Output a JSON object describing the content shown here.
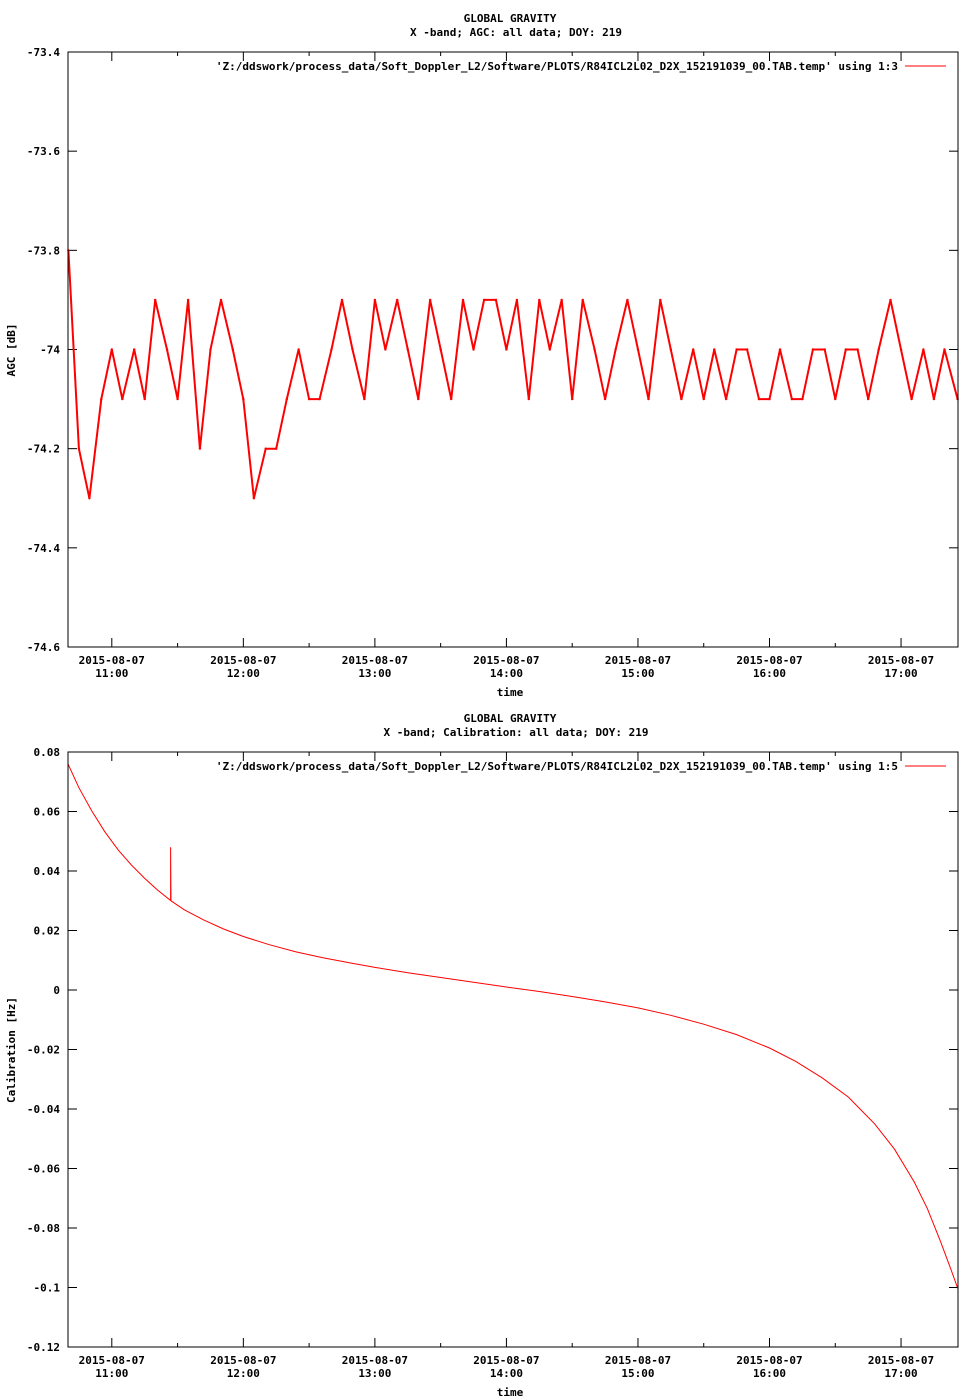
{
  "chart_data": [
    {
      "type": "line",
      "title": "GLOBAL GRAVITY",
      "subtitle": "X -band; AGC: all data; DOY: 219",
      "xlabel": "time",
      "ylabel": "AGC [dB]",
      "ylim": [
        -74.6,
        -73.4
      ],
      "yticks": [
        -73.4,
        -73.6,
        -73.8,
        -74,
        -74.2,
        -74.4,
        -74.6
      ],
      "xlim": [
        10.667,
        17.433
      ],
      "xticks": [
        {
          "x": 11,
          "date": "2015-08-07",
          "time": "11:00"
        },
        {
          "x": 12,
          "date": "2015-08-07",
          "time": "12:00"
        },
        {
          "x": 13,
          "date": "2015-08-07",
          "time": "13:00"
        },
        {
          "x": 14,
          "date": "2015-08-07",
          "time": "14:00"
        },
        {
          "x": 15,
          "date": "2015-08-07",
          "time": "15:00"
        },
        {
          "x": 16,
          "date": "2015-08-07",
          "time": "16:00"
        },
        {
          "x": 17,
          "date": "2015-08-07",
          "time": "17:00"
        }
      ],
      "legend_position": "top-right",
      "series": [
        {
          "name": "'Z:/ddswork/process_data/Soft_Doppler_L2/Software/PLOTS/R84ICL2L02_D2X_152191039_00.TAB.temp' using 1:3",
          "color": "#ff0000",
          "x": [
            10.67,
            10.75,
            10.83,
            10.92,
            11.0,
            11.08,
            11.17,
            11.25,
            11.33,
            11.42,
            11.5,
            11.58,
            11.67,
            11.75,
            11.83,
            11.92,
            12.0,
            12.08,
            12.17,
            12.25,
            12.33,
            12.42,
            12.5,
            12.58,
            12.67,
            12.75,
            12.83,
            12.92,
            13.0,
            13.08,
            13.17,
            13.25,
            13.33,
            13.42,
            13.5,
            13.58,
            13.67,
            13.75,
            13.83,
            13.92,
            14.0,
            14.08,
            14.17,
            14.25,
            14.33,
            14.42,
            14.5,
            14.58,
            14.67,
            14.75,
            14.83,
            14.92,
            15.0,
            15.08,
            15.17,
            15.25,
            15.33,
            15.42,
            15.5,
            15.58,
            15.67,
            15.75,
            15.83,
            15.92,
            16.0,
            16.08,
            16.17,
            16.25,
            16.33,
            16.42,
            16.5,
            16.58,
            16.67,
            16.75,
            16.83,
            16.92,
            17.0,
            17.08,
            17.17,
            17.25,
            17.33,
            17.43
          ],
          "y": [
            -73.8,
            -74.2,
            -74.3,
            -74.1,
            -74.0,
            -74.1,
            -74.0,
            -74.1,
            -73.9,
            -74.0,
            -74.1,
            -73.9,
            -74.2,
            -74.0,
            -73.9,
            -74.0,
            -74.1,
            -74.3,
            -74.2,
            -74.2,
            -74.1,
            -74.0,
            -74.1,
            -74.1,
            -74.0,
            -73.9,
            -74.0,
            -74.1,
            -73.9,
            -74.0,
            -73.9,
            -74.0,
            -74.1,
            -73.9,
            -74.0,
            -74.1,
            -73.9,
            -74.0,
            -73.9,
            -73.9,
            -74.0,
            -73.9,
            -74.1,
            -73.9,
            -74.0,
            -73.9,
            -74.1,
            -73.9,
            -74.0,
            -74.1,
            -74.0,
            -73.9,
            -74.0,
            -74.1,
            -73.9,
            -74.0,
            -74.1,
            -74.0,
            -74.1,
            -74.0,
            -74.1,
            -74.0,
            -74.0,
            -74.1,
            -74.1,
            -74.0,
            -74.1,
            -74.1,
            -74.0,
            -74.0,
            -74.1,
            -74.0,
            -74.0,
            -74.1,
            -74.0,
            -73.9,
            -74.0,
            -74.1,
            -74.0,
            -74.1,
            -74.0,
            -74.1
          ]
        }
      ]
    },
    {
      "type": "line",
      "title": "GLOBAL GRAVITY",
      "subtitle": "X -band; Calibration: all data; DOY: 219",
      "xlabel": "time",
      "ylabel": "Calibration [Hz]",
      "ylim": [
        -0.12,
        0.08
      ],
      "yticks": [
        0.08,
        0.06,
        0.04,
        0.02,
        0,
        -0.02,
        -0.04,
        -0.06,
        -0.08,
        -0.1,
        -0.12
      ],
      "xlim": [
        10.667,
        17.433
      ],
      "xticks": [
        {
          "x": 11,
          "date": "2015-08-07",
          "time": "11:00"
        },
        {
          "x": 12,
          "date": "2015-08-07",
          "time": "12:00"
        },
        {
          "x": 13,
          "date": "2015-08-07",
          "time": "13:00"
        },
        {
          "x": 14,
          "date": "2015-08-07",
          "time": "14:00"
        },
        {
          "x": 15,
          "date": "2015-08-07",
          "time": "15:00"
        },
        {
          "x": 16,
          "date": "2015-08-07",
          "time": "16:00"
        },
        {
          "x": 17,
          "date": "2015-08-07",
          "time": "17:00"
        }
      ],
      "legend_position": "top-right",
      "series": [
        {
          "name": "'Z:/ddswork/process_data/Soft_Doppler_L2/Software/PLOTS/R84ICL2L02_D2X_152191039_00.TAB.temp' using 1:5",
          "color": "#ff0000",
          "x": [
            10.667,
            10.75,
            10.85,
            10.95,
            11.05,
            11.15,
            11.25,
            11.35,
            11.45,
            11.447,
            11.447,
            11.45,
            11.55,
            11.7,
            11.85,
            12.0,
            12.2,
            12.4,
            12.6,
            12.8,
            13.0,
            13.25,
            13.5,
            13.75,
            14.0,
            14.25,
            14.5,
            14.75,
            15.0,
            15.25,
            15.5,
            15.75,
            16.0,
            16.2,
            16.4,
            16.6,
            16.8,
            16.95,
            17.1,
            17.2,
            17.3,
            17.38,
            17.433
          ],
          "y": [
            0.076,
            0.068,
            0.06,
            0.053,
            0.047,
            0.042,
            0.0375,
            0.0335,
            0.03,
            0.048,
            0.0305,
            0.03,
            0.027,
            0.0235,
            0.0205,
            0.018,
            0.0152,
            0.0128,
            0.0109,
            0.0092,
            0.0076,
            0.0058,
            0.0042,
            0.0026,
            0.001,
            -0.0005,
            -0.0022,
            -0.004,
            -0.006,
            -0.0085,
            -0.0115,
            -0.015,
            -0.0195,
            -0.024,
            -0.0295,
            -0.036,
            -0.045,
            -0.0535,
            -0.0645,
            -0.0735,
            -0.0845,
            -0.094,
            -0.1005
          ]
        }
      ]
    }
  ]
}
